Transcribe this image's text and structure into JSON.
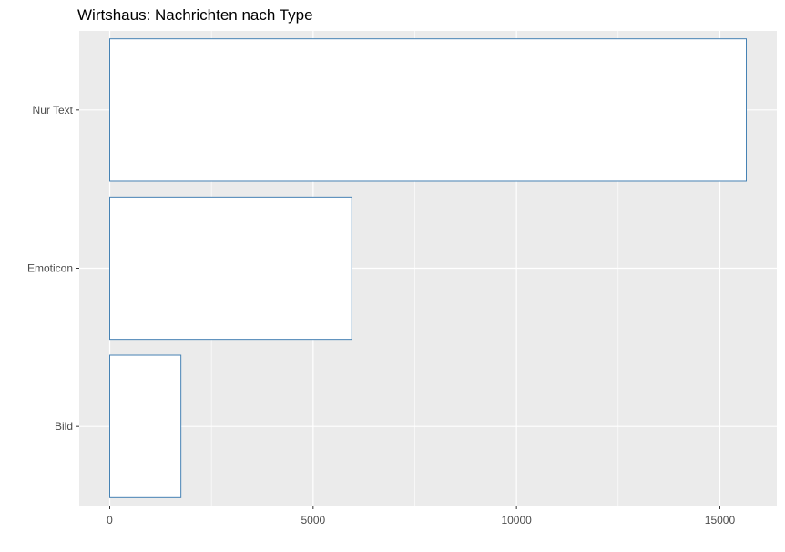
{
  "chart_data": {
    "type": "bar",
    "orientation": "horizontal",
    "title": "Wirtshaus: Nachrichten nach Type",
    "xlabel": "",
    "ylabel": "",
    "categories": [
      "Nur Text",
      "Emoticon",
      "Bild"
    ],
    "values": [
      15650,
      5950,
      1750
    ],
    "xlim": [
      -750,
      16400
    ],
    "xticks": [
      "0",
      "5000",
      "10000",
      "15000"
    ],
    "xtick_values": [
      0,
      5000,
      10000,
      15000
    ],
    "grid": true,
    "legend": "none",
    "colors": {
      "panel": "#EBEBEB",
      "grid": "#FFFFFF",
      "bar_fill": "#FFFFFF",
      "bar_outline": "#4682B4",
      "tick_text": "#4D4D4D",
      "title": "#000000"
    }
  }
}
